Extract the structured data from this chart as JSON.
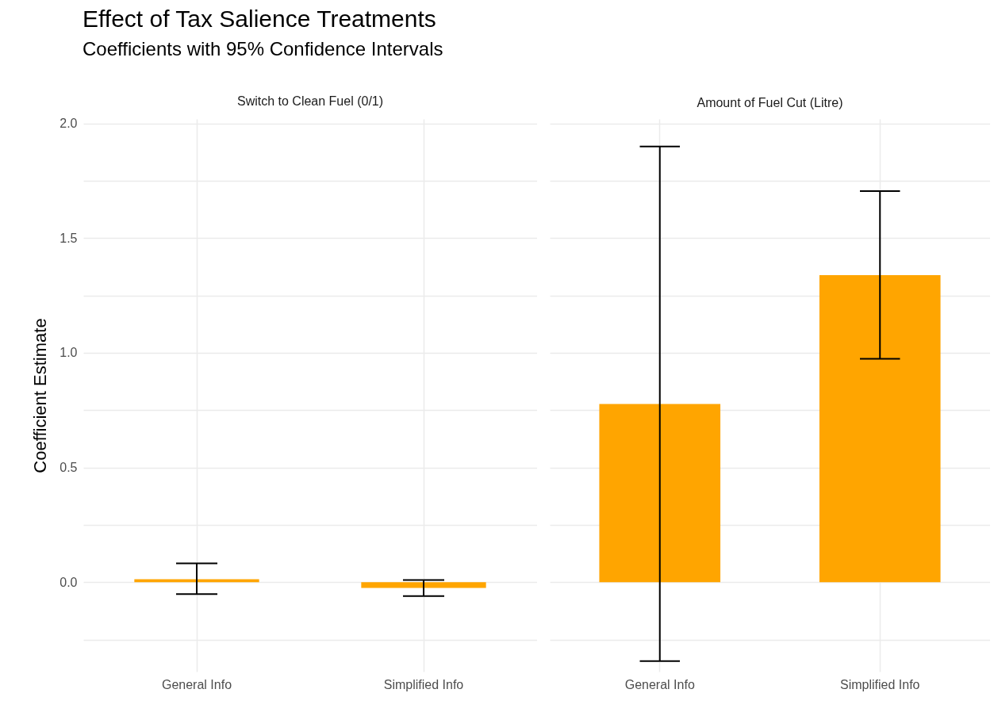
{
  "chart_data": [
    {
      "type": "bar",
      "title": "Switch to Clean Fuel (0/1)",
      "ylabel": "Coefficient Estimate",
      "annotations": [
        "Effect of Tax Salience Treatments",
        "Coefficients with 95% Confidence Intervals"
      ],
      "categories": [
        "General Info",
        "Simplified Info"
      ],
      "series": [
        {
          "color": "#ffa500",
          "values": [
            0.013,
            -0.025
          ],
          "errors": [
            [
              -0.052,
              0.082
            ],
            [
              -0.061,
              0.009
            ]
          ]
        }
      ],
      "ylim": [
        -0.39,
        2.02
      ],
      "yticks": [
        {
          "value": -0.25,
          "label": null
        },
        {
          "value": 0,
          "label": "0.0"
        },
        {
          "value": 0.25,
          "label": null
        },
        0.5,
        {
          "value": 0.75,
          "label": null
        },
        {
          "value": 1,
          "label": "1.0"
        },
        {
          "value": 1.25,
          "label": null
        },
        1.5,
        {
          "value": 1.75,
          "label": null
        },
        {
          "value": 2,
          "label": "2.0"
        }
      ],
      "grid": true
    },
    {
      "type": "bar",
      "title": "Amount of Fuel Cut (Litre)",
      "categories": [
        "General Info",
        "Simplified Info"
      ],
      "series": [
        {
          "color": "#ffa500",
          "values": [
            0.777,
            1.339
          ],
          "errors": [
            [
              -0.344,
              1.9
            ],
            [
              0.974,
              1.705
            ]
          ]
        }
      ],
      "ylim": [
        -0.39,
        2.02
      ],
      "yticks": [
        -0.25,
        0,
        0.25,
        0.5,
        0.75,
        1,
        1.25,
        1.5,
        1.75,
        2
      ],
      "grid": true,
      "tick_labels": "x"
    }
  ]
}
